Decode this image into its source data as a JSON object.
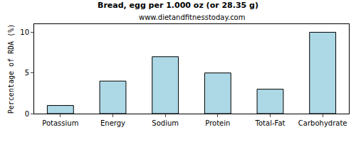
{
  "chart_data": {
    "type": "bar",
    "title": "Bread, egg per 1.000 oz (or 28.35 g)",
    "subtitle": "www.dietandfitnesstoday.com",
    "y_label": "Percentage of RDA (%)",
    "categories": [
      "Potassium",
      "Energy",
      "Sodium",
      "Protein",
      "Total-Fat",
      "Carbohydrate"
    ],
    "values": [
      1,
      4,
      7,
      5,
      3,
      10
    ],
    "color": "#add8e6",
    "ylim": [
      0,
      11
    ],
    "yticks": [
      0,
      5,
      10
    ],
    "grid": false
  }
}
